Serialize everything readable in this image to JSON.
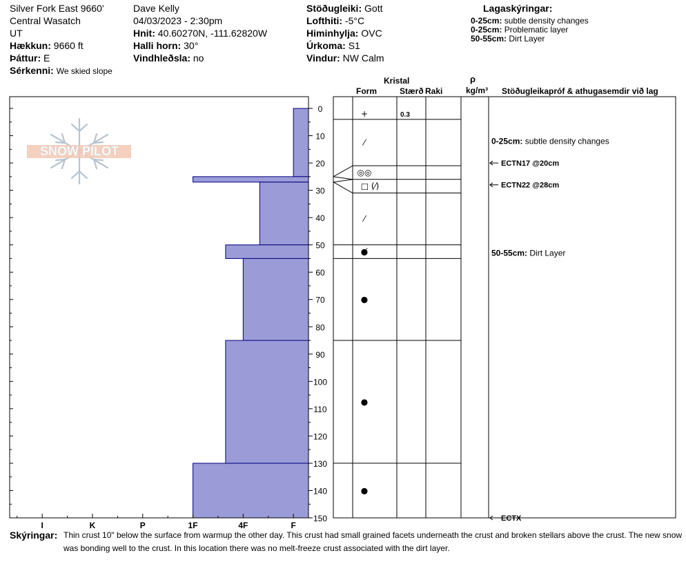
{
  "header": {
    "col1": {
      "site": "Silver Fork East 9660'",
      "range": "Central Wasatch",
      "state": "UT",
      "elevation_label": "Hækkun:",
      "elevation_value": "9660 ft",
      "aspect_label": "Þáttur:",
      "aspect_value": "E",
      "specifics_label": "Sérkenni:",
      "specifics_value": "We skied slope"
    },
    "col2": {
      "observer": "Dave Kelly",
      "datetime": "04/03/2023 - 2:30pm",
      "coords_label": "Hnit:",
      "coords_value": "40.60270N, -111.62820W",
      "slope_label": "Halli horn:",
      "slope_value": "30°",
      "wind_loading_label": "Vindhleðsla:",
      "wind_loading_value": "no"
    },
    "col3": {
      "stability_label": "Stöðugleiki:",
      "stability_value": "Gott",
      "air_temp_label": "Lofthiti:",
      "air_temp_value": "-5°C",
      "sky_label": "Himinhylja:",
      "sky_value": "OVC",
      "precip_label": "Úrkoma:",
      "precip_value": "S1",
      "wind_label": "Vindur:",
      "wind_value": "NW Calm"
    },
    "legend": {
      "title": "Lagaskýringar:",
      "items": [
        {
          "range": "0-25cm:",
          "text": "subtle density changes"
        },
        {
          "range": "0-25cm:",
          "text": "Problematic layer"
        },
        {
          "range": "50-55cm:",
          "text": "Dirt Layer"
        }
      ]
    }
  },
  "logo_text": "SNOW PILOT",
  "columns": {
    "crystal": "Kristal",
    "form": "Form",
    "size": "Stærð",
    "moisture": "Raki",
    "rho": "ρ",
    "density_unit": "kg/m³",
    "stability": "Stöðugleikapróf & athugasemdir við lag"
  },
  "hardness_axis": [
    "I",
    "K",
    "P",
    "1F",
    "4F",
    "F"
  ],
  "colors": {
    "fill": "#9b9bd7",
    "edge": "#00007f",
    "axis": "#000000"
  },
  "chart_data": {
    "type": "bar",
    "orientation": "horizontal",
    "ylabel": "",
    "ylim": [
      0,
      150
    ],
    "yticks": [
      0,
      10,
      20,
      30,
      40,
      50,
      60,
      70,
      80,
      90,
      100,
      110,
      120,
      130,
      140,
      150
    ],
    "hardness_scale": [
      "F",
      "4F",
      "1F",
      "P",
      "K",
      "I"
    ],
    "layers": [
      {
        "top": 0,
        "bottom": 25,
        "hardness": 0.3
      },
      {
        "top": 25,
        "bottom": 27,
        "hardness": 2.3
      },
      {
        "top": 27,
        "bottom": 50,
        "hardness": 0.97
      },
      {
        "top": 50,
        "bottom": 55,
        "hardness": 1.65
      },
      {
        "top": 55,
        "bottom": 85,
        "hardness": 1.3
      },
      {
        "top": 85,
        "bottom": 130,
        "hardness": 1.65
      },
      {
        "top": 130,
        "bottom": 150,
        "hardness": 2.3
      }
    ],
    "crystal_rows": [
      {
        "top": 0,
        "bottom": 4,
        "form": "+",
        "size": "0.3"
      },
      {
        "top": 4,
        "bottom": 21,
        "form": "⁄",
        "size": ""
      },
      {
        "top": 21,
        "bottom": 26,
        "form": "◎◎",
        "size": ""
      },
      {
        "top": 26,
        "bottom": 31,
        "form": "□ (⁄)",
        "size": ""
      },
      {
        "top": 31,
        "bottom": 50,
        "form": "⁄",
        "size": ""
      },
      {
        "top": 50,
        "bottom": 55,
        "form": "●̸",
        "size": ""
      },
      {
        "top": 55,
        "bottom": 85,
        "form": "●",
        "size": ""
      },
      {
        "top": 85,
        "bottom": 130,
        "form": "●",
        "size": ""
      },
      {
        "top": 130,
        "bottom": 150,
        "form": "●",
        "size": ""
      }
    ],
    "annotations": [
      {
        "depth": 12,
        "range": "0-25cm:",
        "text": "subtle density changes",
        "arrow": false
      },
      {
        "depth": 20,
        "range": "",
        "text": "ECTN17 @20cm",
        "arrow": true
      },
      {
        "depth": 28,
        "range": "",
        "text": "ECTN22 @28cm",
        "arrow": true
      },
      {
        "depth": 53,
        "range": "50-55cm:",
        "text": "Dirt Layer",
        "arrow": false
      },
      {
        "depth": 150,
        "range": "",
        "text": "ECTX",
        "arrow": true
      }
    ]
  },
  "comments": {
    "label": "Skýringar:",
    "line1": "Thin crust 10\" below the surface from warmup the other day. This crust had small grained facets underneath the crust and broken stellars above the crust. The new snow",
    "line2": "was bonding well to the crust. In this location there was no melt-freeze crust associated with the dirt layer."
  }
}
